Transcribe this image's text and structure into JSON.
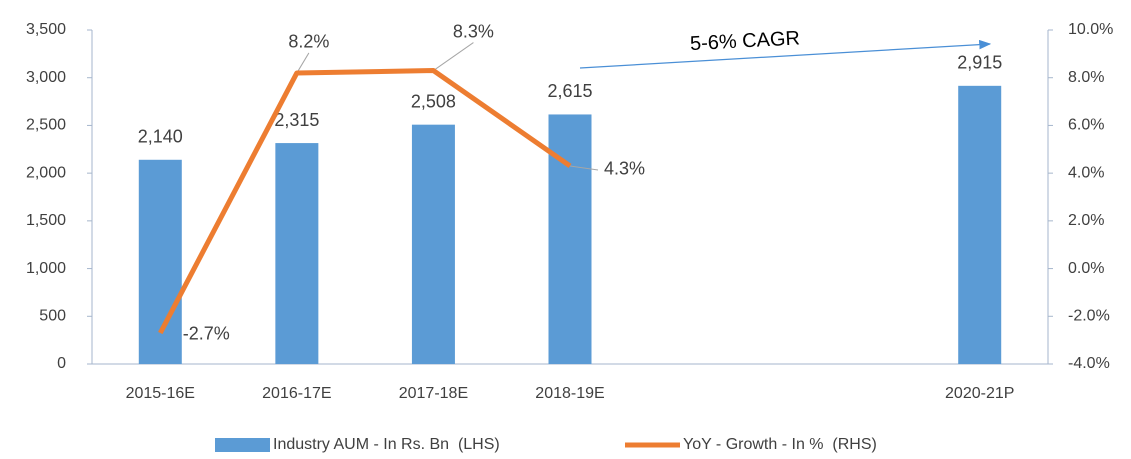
{
  "chart_data": {
    "type": "bar-line",
    "categories": [
      "2015-16E",
      "2016-17E",
      "2017-18E",
      "2018-19E",
      null,
      null,
      "2020-21P"
    ],
    "series": [
      {
        "name": "Industry AUM - In Rs. Bn  (LHS)",
        "type": "bar",
        "color": "#5b9bd5",
        "values": [
          2140,
          2315,
          2508,
          2615,
          null,
          null,
          2915
        ],
        "value_labels": [
          "2,140",
          "2,315",
          "2,508",
          "2,615",
          null,
          null,
          "2,915"
        ]
      },
      {
        "name": "YoY - Growth - In %  (RHS)",
        "type": "line",
        "axis": "y2",
        "color": "#ed7d31",
        "values": [
          -2.7,
          8.2,
          8.3,
          4.3,
          null,
          null,
          null
        ],
        "value_labels": [
          "-2.7%",
          "8.2%",
          "8.3%",
          "4.3%",
          null,
          null,
          null
        ]
      }
    ],
    "ylim": [
      0,
      3500
    ],
    "yticks": [
      0,
      500,
      {
        "value": 1000,
        "label": "1,000"
      },
      {
        "value": 1500,
        "label": "1,500"
      },
      {
        "value": 2000,
        "label": "2,000"
      },
      {
        "value": 2500,
        "label": "2,500"
      },
      {
        "value": 3000,
        "label": "3,000"
      },
      {
        "value": 3500,
        "label": "3,500"
      }
    ],
    "y2lim": [
      -4,
      10
    ],
    "y2ticks": [
      {
        "value": -4,
        "label": "-4.0%"
      },
      {
        "value": -2,
        "label": "-2.0%"
      },
      {
        "value": 0,
        "label": "0.0%"
      },
      {
        "value": 2,
        "label": "2.0%"
      },
      {
        "value": 4,
        "label": "4.0%"
      },
      {
        "value": 6,
        "label": "6.0%"
      },
      {
        "value": 8,
        "label": "8.0%"
      },
      {
        "value": 10,
        "label": "10.0%"
      }
    ],
    "annotation": "5-6% CAGR",
    "grid": false,
    "legend": "bottom"
  }
}
